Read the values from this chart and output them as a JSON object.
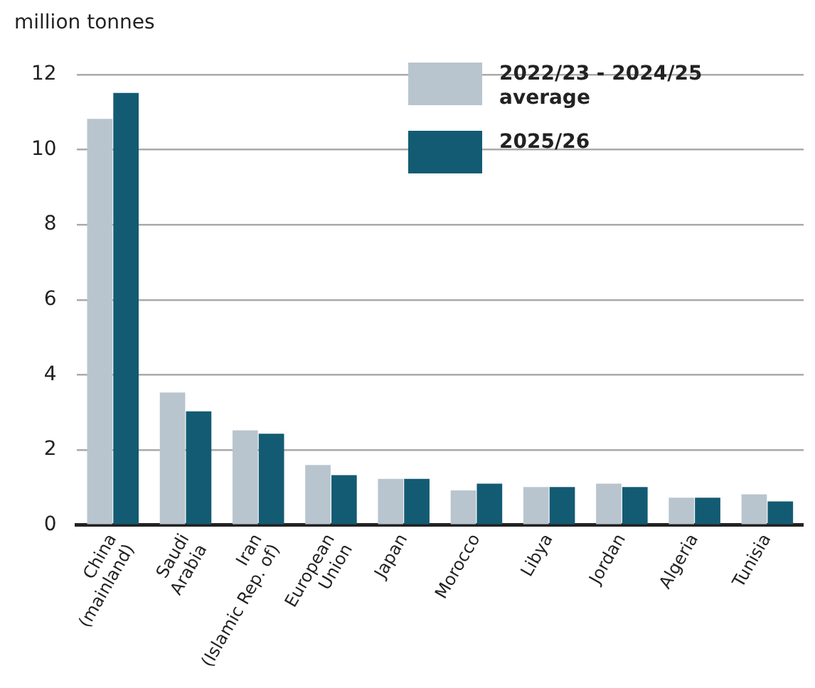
{
  "chart_data": {
    "type": "bar",
    "ylabel": "million tonnes",
    "categories": [
      "China (mainland)",
      "Saudi Arabia",
      "Iran (Islamic Rep. of)",
      "European Union",
      "Japan",
      "Morocco",
      "Libya",
      "Jordan",
      "Algeria",
      "Tunisia"
    ],
    "series": [
      {
        "name": "2022/23 - 2024/25 average",
        "color": "#b8c5ce",
        "values": [
          10.82,
          3.53,
          2.52,
          1.6,
          1.23,
          0.92,
          1.01,
          1.1,
          0.73,
          0.82
        ]
      },
      {
        "name": "2025/26",
        "color": "#135b73",
        "values": [
          11.51,
          3.03,
          2.43,
          1.33,
          1.23,
          1.1,
          1.01,
          1.01,
          0.73,
          0.63
        ]
      }
    ],
    "ylim": [
      0,
      12
    ],
    "yticks": [
      0,
      2,
      4,
      6,
      8,
      10,
      12
    ],
    "grid": "y",
    "legend": "top right"
  }
}
